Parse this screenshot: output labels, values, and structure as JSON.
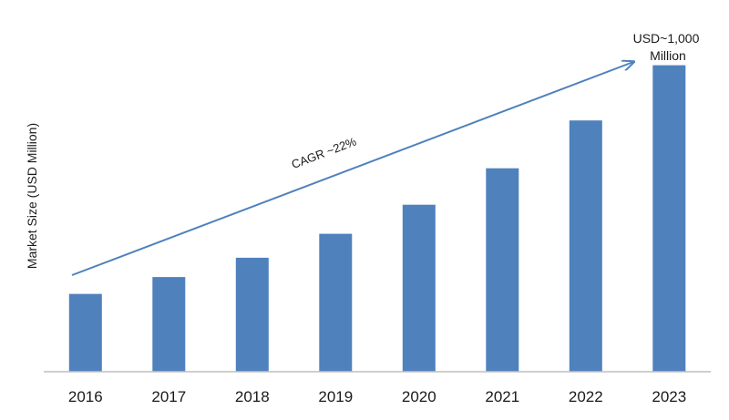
{
  "chart_data": {
    "type": "bar",
    "title": "",
    "xlabel": "",
    "ylabel": "Market Size (USD Million)",
    "categories": [
      "2016",
      "2017",
      "2018",
      "2019",
      "2020",
      "2021",
      "2022",
      "2023"
    ],
    "values": [
      254,
      309,
      372,
      450,
      545,
      664,
      820,
      1000
    ],
    "ylim": [
      0,
      1100
    ],
    "grid": false,
    "legend": "none",
    "bar_color": "#4f81bd",
    "annotations": {
      "trend_label": "CAGR ~22%",
      "end_label_line1": "USD~1,000",
      "end_label_line2": "Million"
    }
  }
}
